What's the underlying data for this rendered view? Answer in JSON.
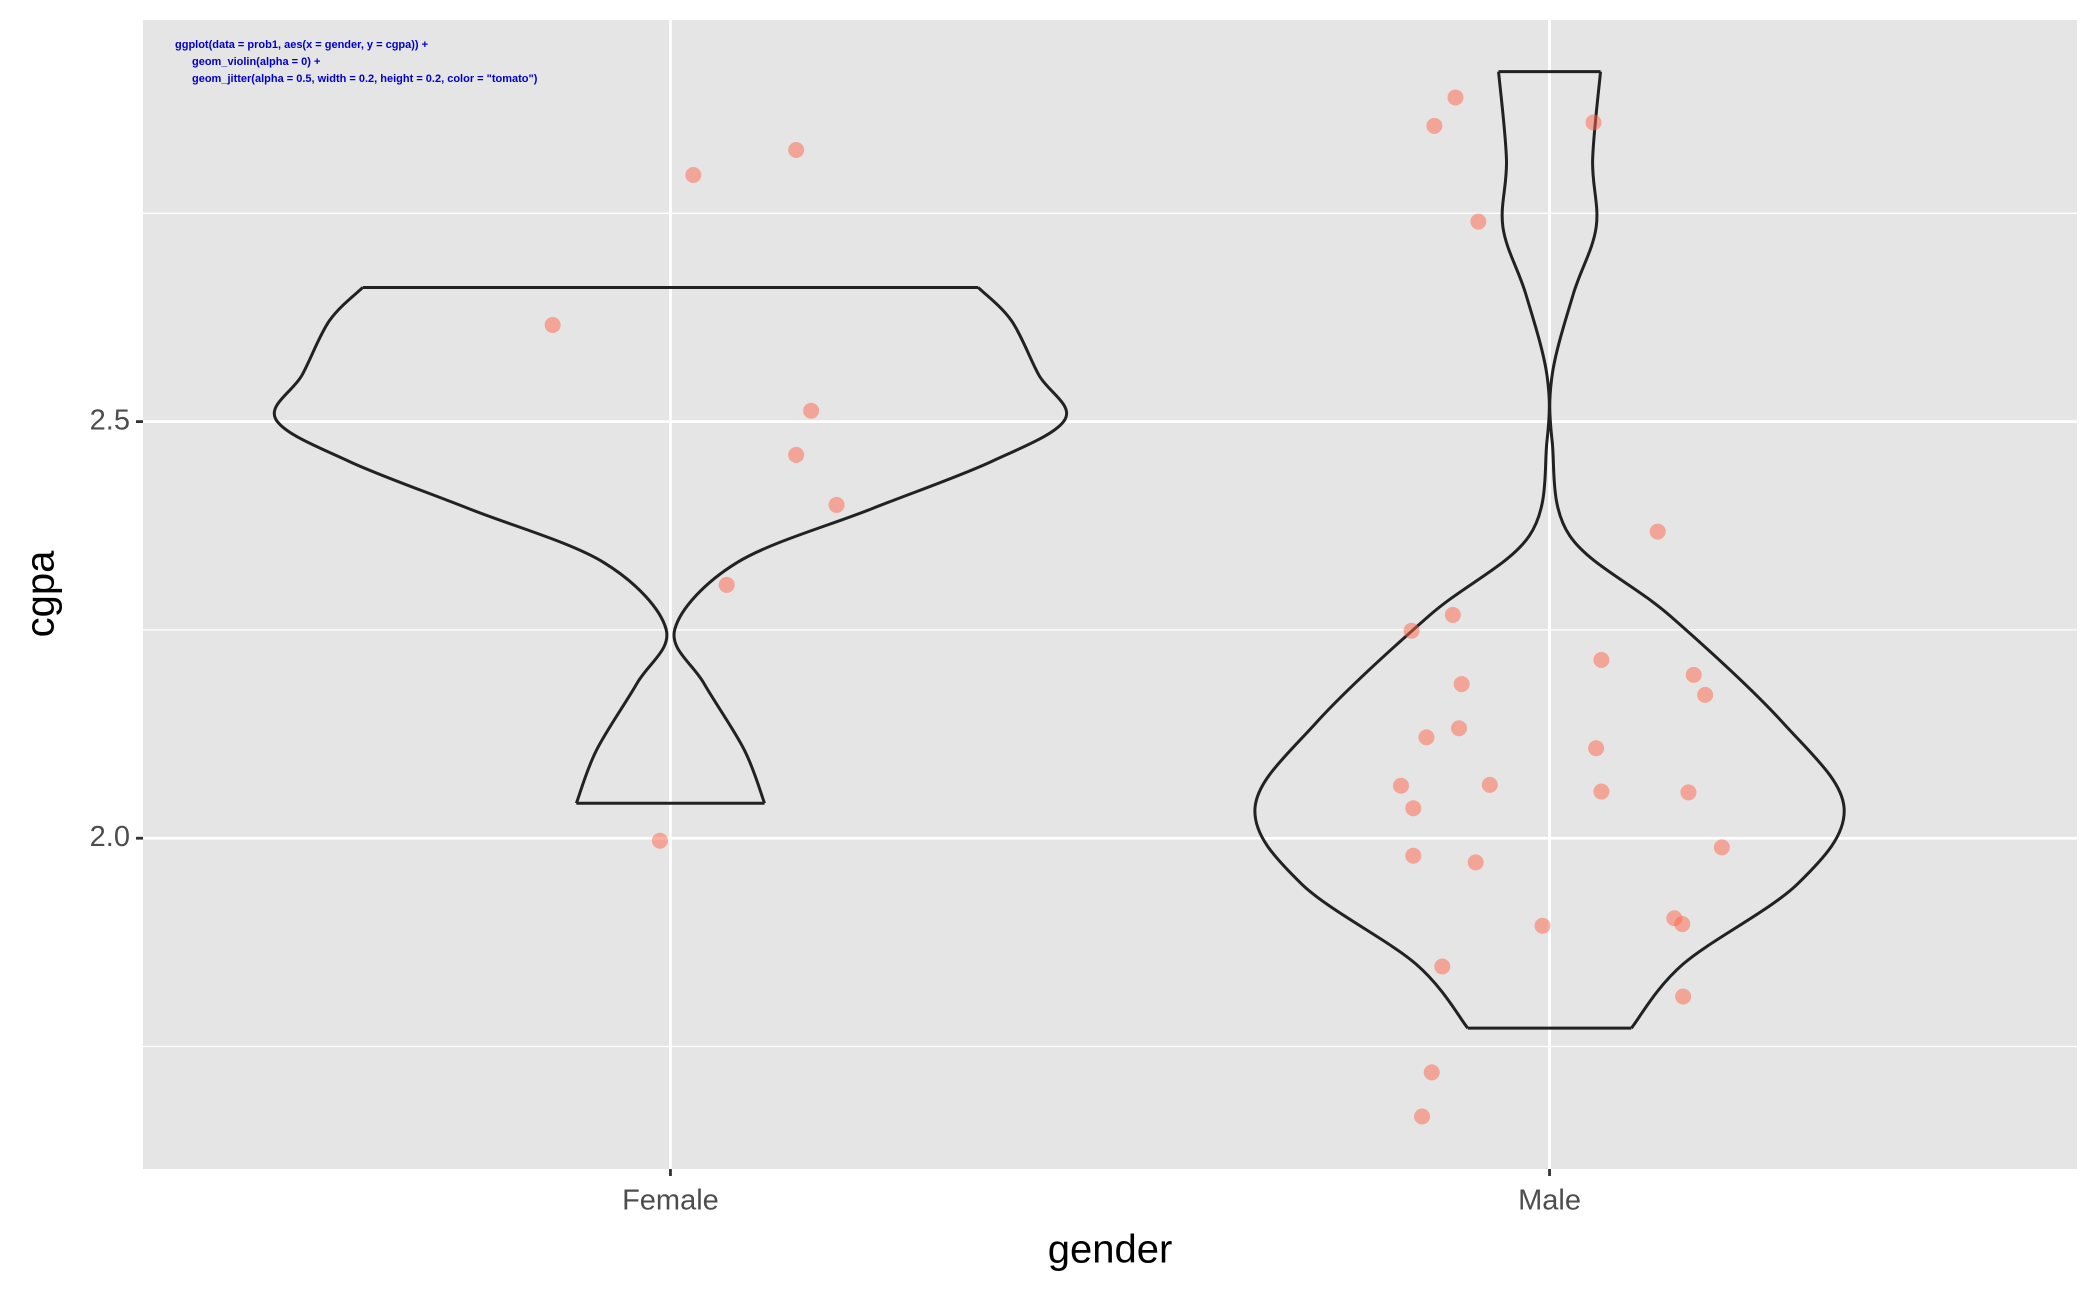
{
  "chart_data": {
    "type": "violin",
    "annotation": [
      "ggplot(data = prob1, aes(x = gender, y = cgpa)) +",
      "geom_violin(alpha = 0) +",
      "geom_jitter(alpha = 0.5, width = 0.2, height = 0.2, color = \"tomato\")"
    ],
    "x_label": "gender",
    "y_label": "cgpa",
    "categories": [
      "Female",
      "Male"
    ],
    "xlim": [
      0.4,
      2.6
    ],
    "ylim": [
      1.603,
      2.982
    ],
    "yticks": [
      {
        "value": 2,
        "label": "2.0"
      },
      2.5
    ],
    "minor_yticks": [
      1.75,
      2.25,
      2.75
    ],
    "grid": true,
    "violins": [
      {
        "y": [
          2.661,
          2.621,
          2.556,
          2.503,
          2.452,
          2.395,
          2.331,
          2.251,
          2.186,
          2.106,
          2.042
        ],
        "halfwidths": [
          0.35,
          0.388,
          0.419,
          0.449,
          0.365,
          0.228,
          0.076,
          0.005,
          0.038,
          0.084,
          0.107
        ]
      },
      {
        "y": [
          2.92,
          2.814,
          2.733,
          2.653,
          2.556,
          2.476,
          2.363,
          2.267,
          2.138,
          2.037,
          1.945,
          1.849,
          1.772
        ],
        "halfwidths": [
          0.058,
          0.049,
          0.053,
          0.027,
          0.003,
          0.003,
          0.023,
          0.137,
          0.266,
          0.335,
          0.282,
          0.152,
          0.093
        ]
      }
    ],
    "points": {
      "color": "tomato",
      "alpha": 0.5,
      "x": [
        1.143,
        1.026,
        0.866,
        1.16,
        1.143,
        1.189,
        1.064,
        0.988,
        1.893,
        1.869,
        2.05,
        1.919,
        2.123,
        1.89,
        1.843,
        2.059,
        2.164,
        1.9,
        2.177,
        1.897,
        1.86,
        2.053,
        1.831,
        1.932,
        1.845,
        2.059,
        2.158,
        2.196,
        1.845,
        1.916,
        1.992,
        2.142,
        2.151,
        1.878,
        2.152,
        1.866,
        1.855
      ],
      "y": [
        2.826,
        2.796,
        2.616,
        2.513,
        2.46,
        2.4,
        2.304,
        1.997,
        2.889,
        2.855,
        2.859,
        2.74,
        2.368,
        2.268,
        2.249,
        2.214,
        2.196,
        2.185,
        2.172,
        2.132,
        2.121,
        2.108,
        2.063,
        2.064,
        2.036,
        2.056,
        2.055,
        1.989,
        1.979,
        1.971,
        1.895,
        1.904,
        1.897,
        1.846,
        1.81,
        1.719,
        1.666
      ]
    }
  }
}
